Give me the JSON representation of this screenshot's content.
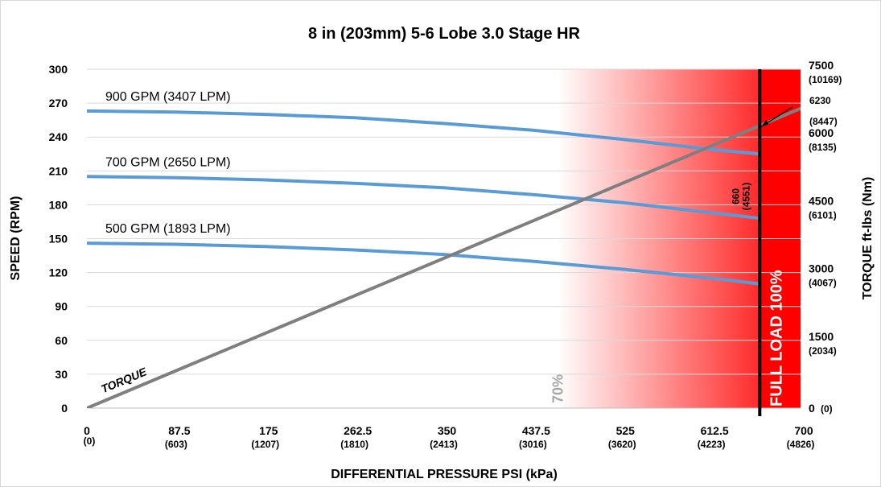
{
  "chart_data": {
    "type": "line",
    "title": "8 in (203mm) 5-6 Lobe 3.0 Stage HR",
    "xlabel": "DIFFERENTIAL PRESSURE PSI (kPa)",
    "ylabel": "SPEED (RPM)",
    "y2label": "TORQUE ft-lbs (Nm)",
    "xlim": [
      0,
      700
    ],
    "ylim": [
      0,
      300
    ],
    "y2lim": [
      0,
      7500
    ],
    "grid": "horizontal",
    "x_ticks": [
      {
        "value": 0,
        "label": "0",
        "sub": "(0)"
      },
      {
        "value": 87.5,
        "label": "87.5",
        "sub": "(603)"
      },
      {
        "value": 175,
        "label": "175",
        "sub": "(1207)"
      },
      {
        "value": 262.5,
        "label": "262.5",
        "sub": "(1810)"
      },
      {
        "value": 350,
        "label": "350",
        "sub": "(2413)"
      },
      {
        "value": 437.5,
        "label": "437.5",
        "sub": "(3016)"
      },
      {
        "value": 525,
        "label": "525",
        "sub": "(3620)"
      },
      {
        "value": 612.5,
        "label": "612.5",
        "sub": "(4223)"
      },
      {
        "value": 700,
        "label": "700",
        "sub": "(4826)"
      }
    ],
    "y_ticks": [
      0,
      30,
      60,
      90,
      120,
      150,
      180,
      210,
      240,
      270,
      300
    ],
    "y2_ticks": [
      {
        "value": 0,
        "label": "0",
        "sub": "(0)"
      },
      {
        "value": 1500,
        "label": "1500",
        "sub": "(2034)"
      },
      {
        "value": 3000,
        "label": "3000",
        "sub": "(4067)"
      },
      {
        "value": 4500,
        "label": "4500",
        "sub": "(6101)"
      },
      {
        "value": 6000,
        "label": "6000",
        "sub": "(8135)"
      },
      {
        "value": 7500,
        "label": "7500",
        "sub": "(10169)"
      }
    ],
    "series": [
      {
        "name": "900 GPM (3407 LPM)",
        "x": [
          0,
          87.5,
          175,
          262.5,
          350,
          437.5,
          525,
          612.5,
          660
        ],
        "y": [
          263,
          262,
          260,
          257,
          252,
          246,
          238,
          229,
          225
        ]
      },
      {
        "name": "700 GPM (2650 LPM)",
        "x": [
          0,
          87.5,
          175,
          262.5,
          350,
          437.5,
          525,
          612.5,
          660
        ],
        "y": [
          205,
          204,
          202,
          199,
          195,
          189,
          182,
          173,
          168
        ]
      },
      {
        "name": "500 GPM (1893 LPM)",
        "x": [
          0,
          87.5,
          175,
          262.5,
          350,
          437.5,
          525,
          612.5,
          660
        ],
        "y": [
          146,
          145,
          143,
          140,
          136,
          130,
          123,
          115,
          110
        ]
      }
    ],
    "torque": {
      "name": "TORQUE",
      "x": [
        0,
        700
      ],
      "y": [
        0,
        6630
      ]
    },
    "full_load": {
      "x": 660,
      "label": "FULL LOAD 100%",
      "x_label": "660",
      "x_label_sub": "(4551)",
      "torque_label": "6230",
      "torque_label_sub": "(8447)",
      "torque_value": 6230
    },
    "pct70": {
      "x": 462,
      "label": "70%"
    },
    "gradient_zone": {
      "from": 462,
      "to": 700
    },
    "colors": {
      "speed": "#5b9bd5",
      "torque": "#7f7f7f",
      "full_load": "#000000",
      "zone_start": "#ffffff",
      "zone_end": "#ff0000"
    }
  }
}
